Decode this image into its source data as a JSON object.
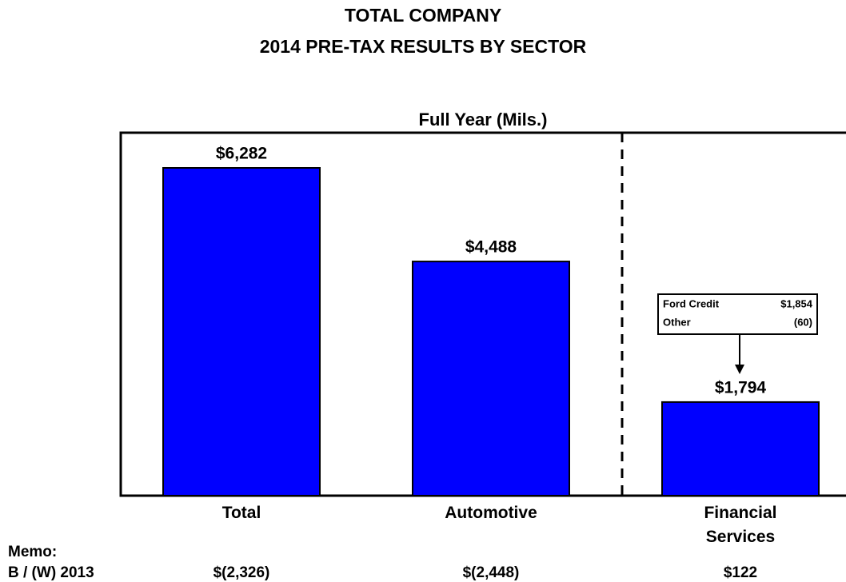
{
  "chart_data": {
    "type": "bar",
    "title": [
      "TOTAL COMPANY",
      "2014 PRE-TAX RESULTS BY SECTOR"
    ],
    "subtitle": "Full Year (Mils.)",
    "categories": [
      "Total",
      "Automotive",
      "Financial Services"
    ],
    "values": [
      6282,
      4488,
      1794
    ],
    "value_labels": [
      "$6,282",
      "$4,488",
      "$1,794"
    ],
    "color": "#0000ff",
    "annotation": {
      "rows": [
        [
          "Ford Credit",
          "$1,854"
        ],
        [
          "Other",
          "(60)"
        ]
      ]
    },
    "memo": {
      "title": "Memo:",
      "label": "B / (W) 2013",
      "values": [
        "$(2,326)",
        "$(2,448)",
        "$122"
      ]
    }
  }
}
